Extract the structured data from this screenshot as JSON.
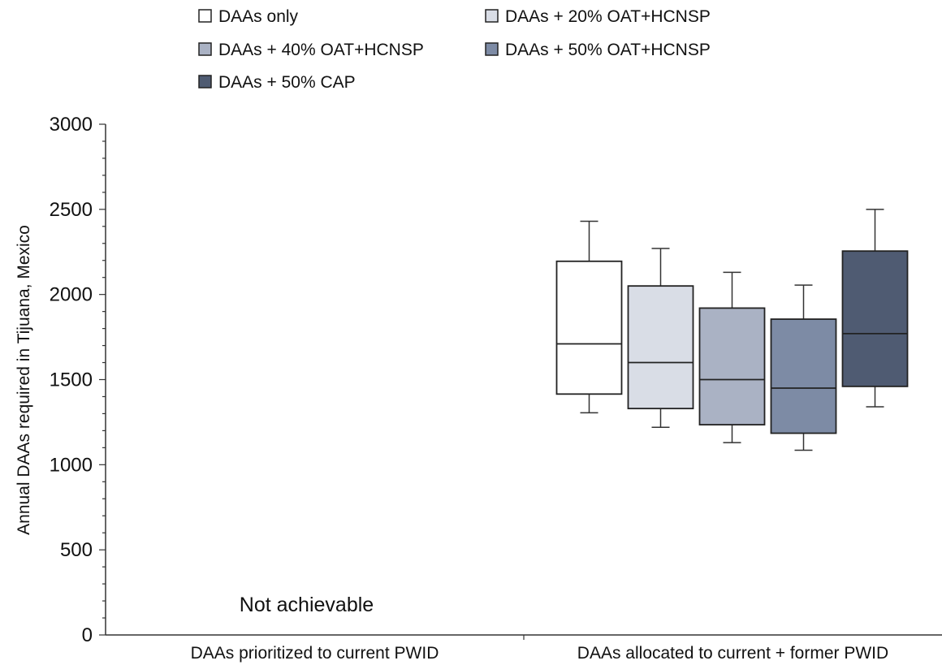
{
  "chart_data": {
    "type": "box",
    "ylabel": "Annual DAAs required in Tijuana, Mexico",
    "ylim": [
      0,
      3000
    ],
    "yticks": [
      0,
      500,
      1000,
      1500,
      2000,
      2500,
      3000
    ],
    "categories": [
      "DAAs prioritized to current PWID",
      "DAAs allocated to current + former PWID"
    ],
    "annotations": [
      {
        "category": "DAAs prioritized to current PWID",
        "text": "Not achievable"
      }
    ],
    "legend_position": "top",
    "series": [
      {
        "name": "DAAs only",
        "color": "#ffffff",
        "values": [
          null,
          {
            "whisker_low": 1305,
            "q1": 1415,
            "median": 1710,
            "q3": 2195,
            "whisker_high": 2430
          }
        ]
      },
      {
        "name": "DAAs + 20% OAT+HCNSP",
        "color": "#d9dde6",
        "values": [
          null,
          {
            "whisker_low": 1220,
            "q1": 1330,
            "median": 1600,
            "q3": 2050,
            "whisker_high": 2270
          }
        ]
      },
      {
        "name": "DAAs + 40% OAT+HCNSP",
        "color": "#aab2c4",
        "values": [
          null,
          {
            "whisker_low": 1130,
            "q1": 1235,
            "median": 1500,
            "q3": 1920,
            "whisker_high": 2130
          }
        ]
      },
      {
        "name": "DAAs + 50% OAT+HCNSP",
        "color": "#7d8ba5",
        "values": [
          null,
          {
            "whisker_low": 1085,
            "q1": 1185,
            "median": 1450,
            "q3": 1855,
            "whisker_high": 2055
          }
        ]
      },
      {
        "name": "DAAs + 50% CAP",
        "color": "#4f5b72",
        "values": [
          null,
          {
            "whisker_low": 1340,
            "q1": 1460,
            "median": 1770,
            "q3": 2255,
            "whisker_high": 2500
          }
        ]
      }
    ]
  }
}
